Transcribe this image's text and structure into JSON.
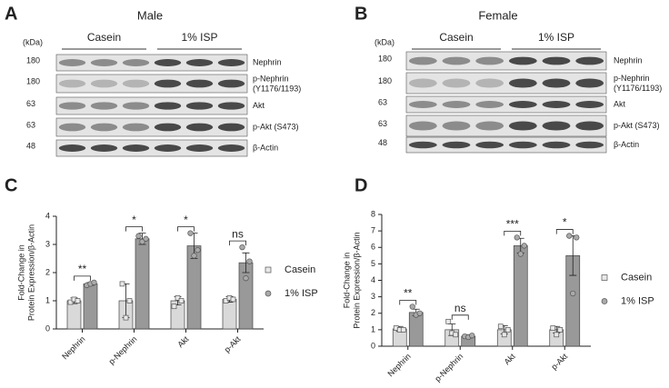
{
  "panels": [
    {
      "letter": "A",
      "title": "Male",
      "unit": "(kDa)",
      "groups": [
        "Casein",
        "1% ISP"
      ],
      "rows": [
        {
          "kda": 180,
          "label": [
            "Nephrin"
          ]
        },
        {
          "kda": 180,
          "label": [
            "p-Nephrin",
            "(Y1176/1193)"
          ]
        },
        {
          "kda": 63,
          "label": [
            "Akt"
          ]
        },
        {
          "kda": 63,
          "label": [
            "p-Akt (S473)"
          ]
        },
        {
          "kda": 48,
          "label": [
            "β-Actin"
          ]
        }
      ]
    },
    {
      "letter": "B",
      "title": "Female",
      "unit": "(kDa)",
      "groups": [
        "Casein",
        "1% ISP"
      ],
      "rows": [
        {
          "kda": 180,
          "label": [
            "Nephrin"
          ]
        },
        {
          "kda": 180,
          "label": [
            "p-Nephrin",
            "(Y1176/1193)"
          ]
        },
        {
          "kda": 63,
          "label": [
            "Akt"
          ]
        },
        {
          "kda": 63,
          "label": [
            "p-Akt (S473)"
          ]
        },
        {
          "kda": 48,
          "label": [
            "β-Actin"
          ]
        }
      ]
    }
  ],
  "chart_data": [
    {
      "type": "bar",
      "label": "C",
      "ylabel": [
        "Fold-Change in",
        "Protein Expression/β-Actin"
      ],
      "categories": [
        "Nephrin",
        "p-Nephrin",
        "Akt",
        "p-Akt"
      ],
      "ylim": [
        0,
        4
      ],
      "yticks": [
        0,
        1,
        2,
        3,
        4
      ],
      "annotations": [
        "**",
        "*",
        "*",
        "ns"
      ],
      "series": [
        {
          "name": "Casein",
          "color": "#d9d9d9",
          "values": [
            1,
            1,
            1,
            1.05
          ],
          "errors": [
            0.1,
            0.6,
            0.15,
            0.1
          ],
          "points": [
            [
              0.95,
              1.05,
              1.0
            ],
            [
              1.6,
              0.4,
              1.0
            ],
            [
              0.8,
              1.1,
              1.0
            ],
            [
              1.0,
              1.1,
              1.05
            ]
          ]
        },
        {
          "name": "1% ISP",
          "color": "#999999",
          "values": [
            1.6,
            3.2,
            2.95,
            2.35
          ],
          "errors": [
            0.05,
            0.2,
            0.45,
            0.35
          ],
          "points": [
            [
              1.55,
              1.6,
              1.65
            ],
            [
              3.3,
              3.1,
              3.2
            ],
            [
              3.4,
              2.6,
              2.8
            ],
            [
              2.9,
              1.8,
              2.4
            ]
          ]
        }
      ]
    },
    {
      "type": "bar",
      "label": "D",
      "ylabel": [
        "Fold-Change in",
        "Protein Expression/β-Actin"
      ],
      "categories": [
        "Nephrin",
        "p-Nephrin",
        "Akt",
        "p-Akt"
      ],
      "ylim": [
        0,
        8
      ],
      "yticks": [
        0,
        1,
        2,
        3,
        4,
        5,
        6,
        7,
        8
      ],
      "annotations": [
        "**",
        "ns",
        "***",
        "*"
      ],
      "series": [
        {
          "name": "Casein",
          "color": "#d9d9d9",
          "values": [
            1.05,
            1,
            1,
            1
          ],
          "errors": [
            0.15,
            0.35,
            0.25,
            0.2
          ],
          "points": [
            [
              1.1,
              1.0,
              1.0
            ],
            [
              1.5,
              0.8,
              0.7
            ],
            [
              1.2,
              0.7,
              1.0
            ],
            [
              1.1,
              0.7,
              1.0
            ]
          ]
        },
        {
          "name": "1% ISP",
          "color": "#999999",
          "values": [
            2.05,
            0.6,
            6.1,
            5.5
          ],
          "errors": [
            0.2,
            0.1,
            0.45,
            1.2
          ],
          "points": [
            [
              2.4,
              1.9,
              2.0
            ],
            [
              0.6,
              0.55,
              0.65
            ],
            [
              6.6,
              5.6,
              6.1
            ],
            [
              6.7,
              3.2,
              6.6
            ]
          ]
        }
      ]
    }
  ]
}
